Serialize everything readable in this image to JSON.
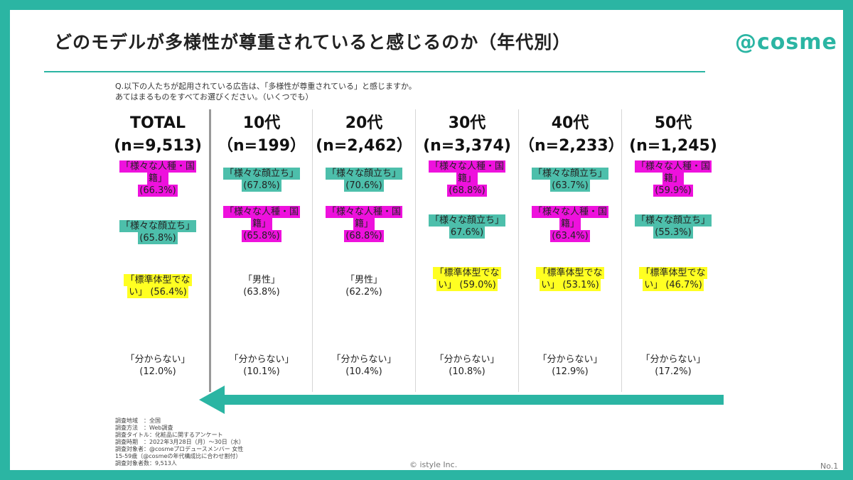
{
  "slide": {
    "title": "どのモデルが多様性が尊重されていると感じるのか（年代別）",
    "logo": "@cosme",
    "question_line1": "Q.以下の人たちが起用されている広告は、「多様性が尊重されている」と感じますか。",
    "question_line2": "あてはまるものをすべてお選びください。（いくつでも）",
    "copyright": "© istyle Inc.",
    "page_number": "No.1"
  },
  "colors": {
    "accent": "#2bb5a3",
    "pink": "#ee11dd",
    "teal": "#4dbfab",
    "yellow": "#ffff22"
  },
  "columns": [
    {
      "label": "TOTAL",
      "n": "(n=9,513)",
      "items": [
        {
          "lines": [
            "「様々な人種・国",
            "籍」",
            "(66.3%)"
          ]
        },
        {
          "lines": [
            "「様々な顔立ち」",
            "(65.8%)"
          ]
        },
        {
          "lines": [
            "「標準体型でな",
            "い」 (56.4%)"
          ]
        },
        {
          "lines": [
            "「分からない」",
            "(12.0%)"
          ]
        }
      ]
    },
    {
      "label": "10代",
      "n": "（n=199）",
      "items": [
        {
          "lines": [
            "「様々な顔立ち」",
            "(67.8%)"
          ]
        },
        {
          "lines": [
            "「様々な人種・国",
            "籍」",
            "(65.8%)"
          ]
        },
        {
          "lines": [
            "「男性」",
            "(63.8%)"
          ]
        },
        {
          "lines": [
            "「分からない」",
            "(10.1%)"
          ]
        }
      ]
    },
    {
      "label": "20代",
      "n": "(n=2,462）",
      "items": [
        {
          "lines": [
            "「様々な顔立ち」",
            "(70.6%)"
          ]
        },
        {
          "lines": [
            "「様々な人種・国",
            "籍」",
            "(68.8%)"
          ]
        },
        {
          "lines": [
            "「男性」",
            "(62.2%)"
          ]
        },
        {
          "lines": [
            "「分からない」",
            "(10.4%)"
          ]
        }
      ]
    },
    {
      "label": "30代",
      "n": "(n=3,374)",
      "items": [
        {
          "lines": [
            "「様々な人種・国",
            "籍」",
            "(68.8%)"
          ]
        },
        {
          "lines": [
            "「様々な顔立ち」",
            "67.6%)"
          ]
        },
        {
          "lines": [
            "「標準体型でな",
            "い」 (59.0%)"
          ]
        },
        {
          "lines": [
            "「分からない」",
            "(10.8%)"
          ]
        }
      ]
    },
    {
      "label": "40代",
      "n": "（n=2,233）",
      "items": [
        {
          "lines": [
            "「様々な顔立ち」",
            "(63.7%)"
          ]
        },
        {
          "lines": [
            "「様々な人種・国",
            "籍」",
            "(63.4%)"
          ]
        },
        {
          "lines": [
            "「標準体型でな",
            "い」 (53.1%)"
          ]
        },
        {
          "lines": [
            "「分からない」",
            "(12.9%)"
          ]
        }
      ]
    },
    {
      "label": "50代",
      "n": "(n=1,245)",
      "items": [
        {
          "lines": [
            "「様々な人種・国",
            "籍」",
            "(59.9%)"
          ]
        },
        {
          "lines": [
            "「様々な顔立ち」",
            "(55.3%)"
          ]
        },
        {
          "lines": [
            "「標準体型でな",
            "い」 (46.7%)"
          ]
        },
        {
          "lines": [
            "「分からない」",
            "(17.2%)"
          ]
        }
      ]
    }
  ],
  "survey_notes": [
    "調査地域　：全国",
    "調査方法　：Web調査",
    "調査タイトル：化粧品に関するアンケート",
    "調査時期　：2022年3月28日（月）～30日（水）",
    "調査対象者：@cosmeプロデュースメンバー 女性",
    "15-59歳（@cosmeの年代構成比に合わせ割付）",
    "調査対象者数：9,513人"
  ]
}
